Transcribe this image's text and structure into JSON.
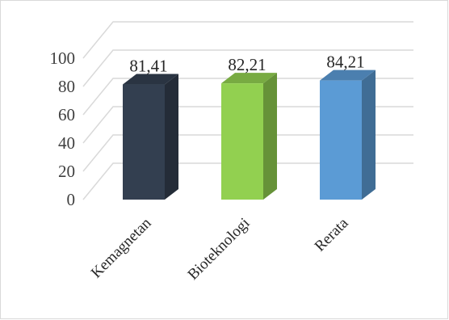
{
  "chart_data": {
    "type": "bar",
    "style": "3d-column",
    "categories": [
      "Kemagnetan",
      "Bioteknologi",
      "Rerata"
    ],
    "values": [
      81.41,
      82.21,
      84.21
    ],
    "value_labels": [
      "81,41",
      "82,21",
      "84,21"
    ],
    "colors": [
      "#333F50",
      "#92D050",
      "#5B9BD5"
    ],
    "yticks": [
      "0",
      "20",
      "40",
      "60",
      "80",
      "100"
    ],
    "ylim": [
      0,
      100
    ],
    "title": "",
    "xlabel": "",
    "ylabel": "",
    "grid": true,
    "legend": "none"
  }
}
